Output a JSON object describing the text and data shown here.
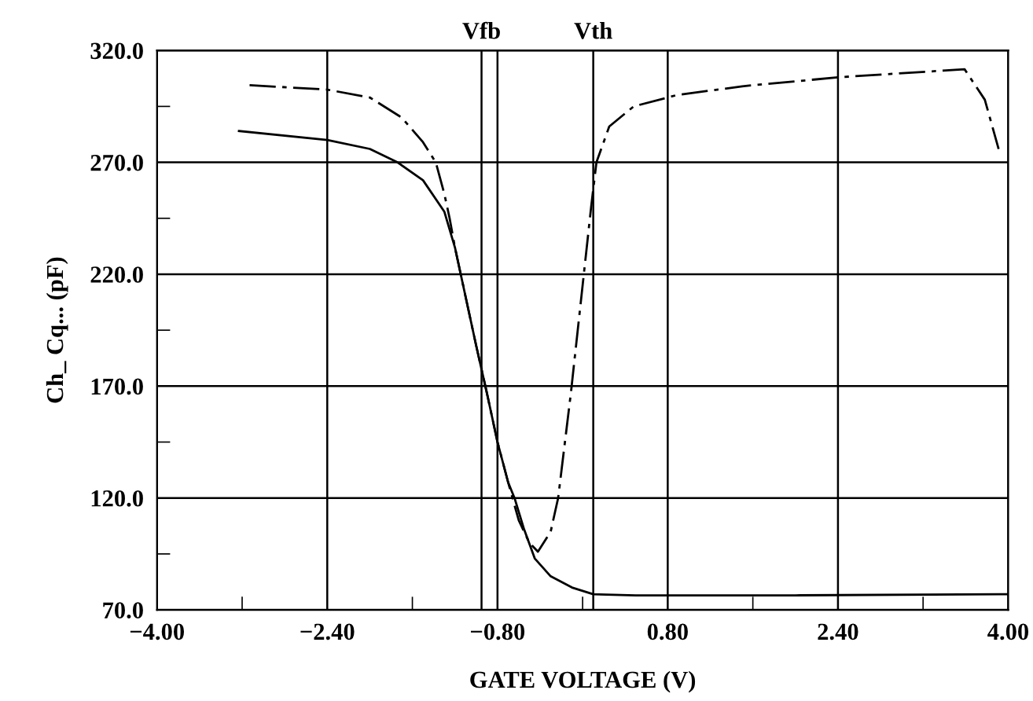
{
  "chart_data": {
    "type": "line",
    "xlabel": "GATE VOLTAGE (V)",
    "ylabel": "Ch_ Cq... (pF)",
    "xlim": [
      -4,
      4
    ],
    "ylim": [
      70,
      320
    ],
    "xticks": [
      {
        "value": -4,
        "label": "−4.00"
      },
      {
        "value": -2.4,
        "label": "−2.40"
      },
      {
        "value": -0.8,
        "label": "−0.80"
      },
      {
        "value": 0.8,
        "label": "0.80"
      },
      {
        "value": 2.4,
        "label": "2.40"
      },
      {
        "value": 4,
        "label": "4.00"
      }
    ],
    "yticks": [
      {
        "value": 70,
        "label": "70.0"
      },
      {
        "value": 120,
        "label": "120.0"
      },
      {
        "value": 170,
        "label": "170.0"
      },
      {
        "value": 220,
        "label": "220.0"
      },
      {
        "value": 270,
        "label": "270.0"
      },
      {
        "value": 320,
        "label": "320.0"
      }
    ],
    "grid": true,
    "legend": false,
    "ref_lines": [
      {
        "axis": "x",
        "value": -0.95,
        "label": "Vfb",
        "color": "#000000"
      },
      {
        "axis": "x",
        "value": 0.1,
        "label": "Vth",
        "color": "#000000"
      }
    ],
    "series": [
      {
        "color": "#000000",
        "line_style": "solid",
        "x": [
          -3.23,
          -2.4,
          -2.0,
          -1.74,
          -1.5,
          -1.3,
          -1.2,
          -1.1,
          -1.0,
          -0.9,
          -0.8,
          -0.7,
          -0.64,
          -0.55,
          -0.45,
          -0.3,
          -0.1,
          0.1,
          0.5,
          2.0,
          4.0
        ],
        "values": [
          284,
          280,
          276,
          270,
          262,
          248,
          232,
          210,
          188,
          167,
          145,
          127,
          120,
          106,
          93,
          85,
          80,
          77,
          76.5,
          76.5,
          77
        ]
      },
      {
        "color": "#000000",
        "line_style": "dashdot",
        "x": [
          -3.13,
          -2.4,
          -2.0,
          -1.7,
          -1.5,
          -1.38,
          -1.3,
          -1.25,
          -1.2,
          -1.1,
          -1.0,
          -0.9,
          -0.8,
          -0.7,
          -0.6,
          -0.5,
          -0.42,
          -0.3,
          -0.23,
          -0.11,
          0.0,
          0.08,
          0.13,
          0.25,
          0.48,
          0.88,
          1.5,
          2.4,
          3.59,
          3.78,
          3.91
        ],
        "values": [
          304.5,
          302.5,
          299,
          290,
          279,
          270,
          256,
          245,
          232,
          210,
          188,
          167,
          145,
          127,
          110,
          100,
          96,
          105,
          120,
          167,
          215,
          250,
          270,
          286,
          295,
          300,
          304,
          308,
          311.6,
          298,
          276
        ]
      }
    ]
  }
}
